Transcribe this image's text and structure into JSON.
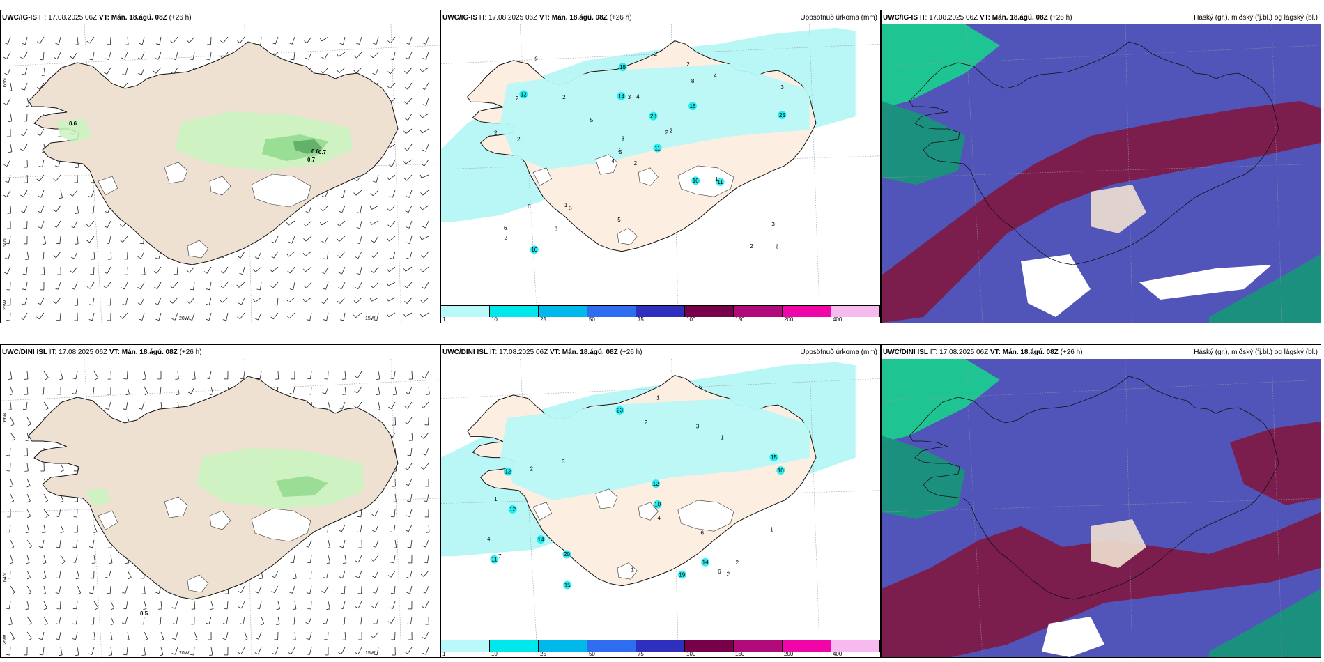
{
  "rows": [
    {
      "model": "UWC/IG-IS",
      "issue": "IT: 17.08.2025 06Z",
      "valid": "VT: Mán. 18.ágú. 08Z",
      "lead": "(+26 h)",
      "wind_labels": [
        "0.6",
        "0.6",
        "0.7",
        "0.7"
      ],
      "precip_labels": [
        "2",
        "2",
        "5",
        "6",
        "2",
        "3",
        "2",
        "4",
        "8",
        "11",
        "9",
        "6",
        "2",
        "3",
        "4",
        "16",
        "10",
        "14",
        "23",
        "6",
        "5",
        "2",
        "3",
        "3",
        "2",
        "11",
        "12",
        "15",
        "2",
        "16",
        "25",
        "7",
        "5",
        "3",
        "2",
        "4",
        "1",
        "2",
        "3",
        "1",
        "2"
      ]
    },
    {
      "model": "UWC/DINI ISL",
      "issue": "IT: 17.08.2025 06Z",
      "valid": "VT: Mán. 18.ágú. 08Z",
      "lead": "(+26 h)",
      "wind_labels": [
        "0.5"
      ],
      "precip_labels": [
        "2",
        "3",
        "6",
        "7",
        "12",
        "1",
        "1",
        "14",
        "20",
        "23",
        "15",
        "14",
        "10",
        "12",
        "5",
        "2",
        "11",
        "10",
        "15",
        "12",
        "19",
        "6",
        "4",
        "3",
        "1",
        "2",
        "1",
        "4",
        "2",
        "1"
      ]
    }
  ],
  "panel_titles": {
    "wind": "",
    "precip": "Uppsöfnuð úrkoma (mm)",
    "cloud": "Háský (gr.), miðský (fj.bl.) og lágský (bl.)"
  },
  "axes": {
    "lon": [
      "20W",
      "15W"
    ],
    "lat": [
      "66N",
      "64N",
      "25W"
    ]
  },
  "colorbar": {
    "ticks": [
      "1",
      "10",
      "25",
      "50",
      "75",
      "100",
      "150",
      "200",
      "400"
    ],
    "colors": [
      "#b9f9f9",
      "#00e8ec",
      "#00b9ea",
      "#2e6df0",
      "#2f2fbd",
      "#78004a",
      "#b10a7a",
      "#f006a8",
      "#f7baee"
    ]
  },
  "colors": {
    "land": "#efe1d2",
    "land_precip": "#fcefe1",
    "wind_light": "#c8f5c0",
    "wind_mid": "#8fdb8c",
    "wind_dark": "#5aa961",
    "precip_light": "#b9f7f7",
    "cloud_high": "#5155b9",
    "cloud_mid": "#7d1b48",
    "cloud_low": "#19947a",
    "cloud_low2": "#1ad08f"
  }
}
